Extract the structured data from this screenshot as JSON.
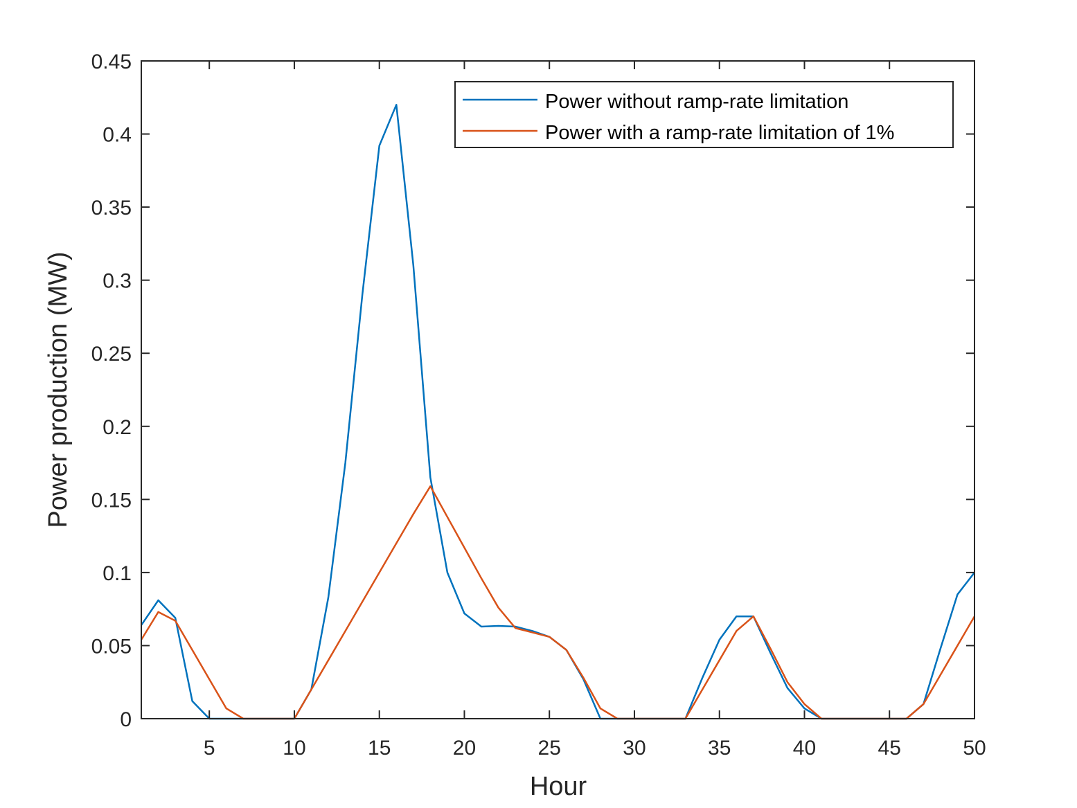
{
  "chart_data": {
    "type": "line",
    "title": "",
    "xlabel": "Hour",
    "ylabel": "Power production (MW)",
    "xlim": [
      1,
      50
    ],
    "ylim": [
      0,
      0.45
    ],
    "xticks": [
      5,
      10,
      15,
      20,
      25,
      30,
      35,
      40,
      45,
      50
    ],
    "yticks": [
      0,
      0.05,
      0.1,
      0.15,
      0.2,
      0.25,
      0.3,
      0.35,
      0.4,
      0.45
    ],
    "ytick_labels": [
      "0",
      "0.05",
      "0.1",
      "0.15",
      "0.2",
      "0.25",
      "0.3",
      "0.35",
      "0.4",
      "0.45"
    ],
    "grid": false,
    "legend_position": "top-right",
    "x": [
      1,
      2,
      3,
      4,
      5,
      6,
      7,
      8,
      9,
      10,
      11,
      12,
      13,
      14,
      15,
      16,
      17,
      18,
      19,
      20,
      21,
      22,
      23,
      24,
      25,
      26,
      27,
      28,
      29,
      30,
      31,
      32,
      33,
      34,
      35,
      36,
      37,
      38,
      39,
      40,
      41,
      42,
      43,
      44,
      45,
      46,
      47,
      48,
      49,
      50
    ],
    "series": [
      {
        "name": "Power without ramp-rate limitation",
        "color": "#0072BD",
        "values": [
          0.064,
          0.081,
          0.069,
          0.012,
          0.0,
          0.0,
          0.0,
          0.0,
          0.0,
          0.0,
          0.02,
          0.083,
          0.175,
          0.29,
          0.392,
          0.42,
          0.31,
          0.165,
          0.1,
          0.072,
          0.063,
          0.0635,
          0.063,
          0.06,
          0.056,
          0.047,
          0.027,
          0.0,
          0.0,
          0.0,
          0.0,
          0.0,
          0.0,
          0.028,
          0.054,
          0.07,
          0.07,
          0.045,
          0.021,
          0.007,
          0.0,
          0.0,
          0.0,
          0.0,
          0.0,
          0.0,
          0.01,
          0.048,
          0.085,
          0.1
        ]
      },
      {
        "name": "Power with a ramp-rate limitation of 1%",
        "color": "#D95319",
        "values": [
          0.054,
          0.073,
          0.067,
          0.047,
          0.027,
          0.007,
          0.0,
          0.0,
          0.0,
          0.0,
          0.02,
          0.04,
          0.06,
          0.08,
          0.1,
          0.12,
          0.14,
          0.159,
          0.138,
          0.117,
          0.096,
          0.076,
          0.062,
          0.059,
          0.056,
          0.047,
          0.028,
          0.007,
          0.0,
          0.0,
          0.0,
          0.0,
          0.0,
          0.02,
          0.04,
          0.06,
          0.07,
          0.048,
          0.025,
          0.01,
          0.0,
          0.0,
          0.0,
          0.0,
          0.0,
          0.0,
          0.01,
          0.03,
          0.05,
          0.07
        ]
      }
    ]
  }
}
